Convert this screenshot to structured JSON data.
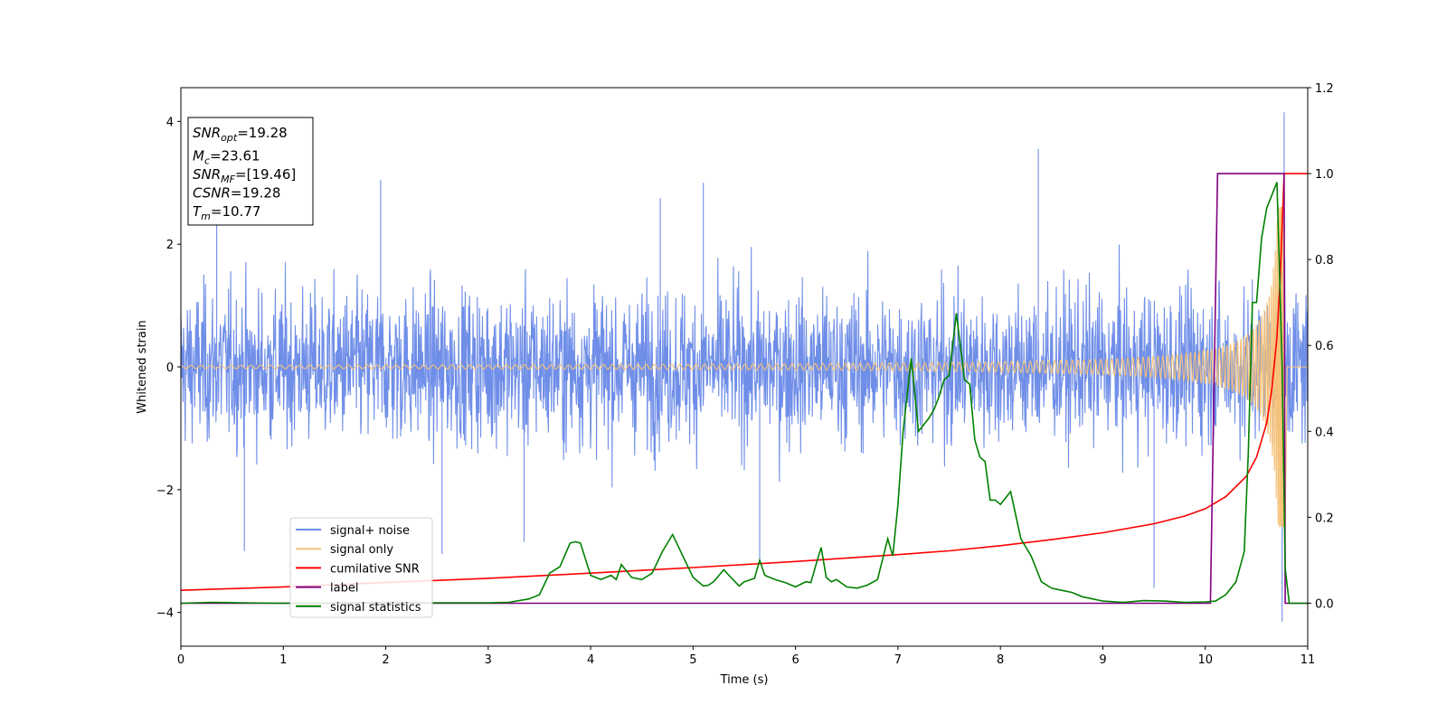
{
  "chart_data": {
    "type": "line",
    "xlabel": "Time (s)",
    "ylabel": "Whitened strain",
    "xlim": [
      0,
      11
    ],
    "ylim_left": [
      -4.55,
      4.55
    ],
    "ylim_right": [
      -0.1,
      1.2
    ],
    "x_ticks": [
      "0",
      "1",
      "2",
      "3",
      "4",
      "5",
      "6",
      "7",
      "8",
      "9",
      "10",
      "11"
    ],
    "y_left_ticks": [
      "−4",
      "−2",
      "0",
      "2",
      "4"
    ],
    "y_right_ticks": [
      "0.0",
      "0.2",
      "0.4",
      "0.6",
      "0.8",
      "1.0",
      "1.2"
    ],
    "grid": false,
    "legend_position": "lower-left",
    "info_box": [
      {
        "base": "SNR",
        "sub": "opt",
        "rest": "=19.28"
      },
      {
        "base": "M",
        "sub": "c",
        "rest": "=23.61"
      },
      {
        "base": "SNR",
        "sub": "MF",
        "rest": "=[19.46]"
      },
      {
        "base": "CSNR",
        "sub": "",
        "rest": "=19.28"
      },
      {
        "base": "T",
        "sub": "m",
        "rest": "=10.77"
      }
    ],
    "series": [
      {
        "name": "signal+ noise",
        "color": "#6f8ee8",
        "axis": "left",
        "style": "noise band, typical amplitude about ±1.5, spikes up to about 4.1"
      },
      {
        "name": "signal only",
        "color": "#f5c27a",
        "axis": "left",
        "style": "chirp, amplitude about 0 growing to about 2.5 near t=10.77"
      },
      {
        "name": "cumilative SNR",
        "color": "#ff0000",
        "axis": "right",
        "x": [
          0,
          1,
          2,
          3,
          4,
          5,
          6,
          7,
          7.5,
          8,
          8.5,
          9,
          9.5,
          9.8,
          10,
          10.2,
          10.4,
          10.5,
          10.6,
          10.65,
          10.7,
          10.73,
          10.77,
          11
        ],
        "y": [
          0.03,
          0.038,
          0.048,
          0.058,
          0.07,
          0.083,
          0.097,
          0.113,
          0.122,
          0.134,
          0.148,
          0.164,
          0.185,
          0.203,
          0.22,
          0.248,
          0.295,
          0.34,
          0.42,
          0.5,
          0.62,
          0.75,
          1.0,
          1.0
        ]
      },
      {
        "name": "label",
        "color": "#800080",
        "axis": "right",
        "x": [
          0,
          10.05,
          10.12,
          10.77,
          10.78,
          11
        ],
        "y": [
          0,
          0,
          1.0,
          1.0,
          0,
          0
        ]
      },
      {
        "name": "signal statistics",
        "color": "#008000",
        "axis": "right",
        "x": [
          0,
          0.3,
          0.6,
          1,
          1.5,
          2,
          2.5,
          3,
          3.2,
          3.4,
          3.5,
          3.6,
          3.7,
          3.8,
          3.85,
          3.9,
          4.0,
          4.1,
          4.2,
          4.25,
          4.3,
          4.4,
          4.5,
          4.6,
          4.7,
          4.8,
          4.9,
          5.0,
          5.1,
          5.15,
          5.2,
          5.3,
          5.35,
          5.45,
          5.5,
          5.6,
          5.65,
          5.7,
          5.8,
          5.9,
          6.0,
          6.1,
          6.15,
          6.2,
          6.25,
          6.3,
          6.35,
          6.4,
          6.5,
          6.6,
          6.7,
          6.8,
          6.9,
          6.95,
          7.0,
          7.05,
          7.13,
          7.2,
          7.3,
          7.35,
          7.4,
          7.45,
          7.5,
          7.57,
          7.65,
          7.7,
          7.75,
          7.8,
          7.85,
          7.9,
          7.95,
          8.0,
          8.1,
          8.2,
          8.3,
          8.4,
          8.5,
          8.6,
          8.7,
          8.8,
          8.9,
          9.0,
          9.2,
          9.4,
          9.6,
          9.8,
          10.0,
          10.1,
          10.2,
          10.3,
          10.38,
          10.42,
          10.46,
          10.5,
          10.55,
          10.6,
          10.65,
          10.7,
          10.75,
          10.78,
          10.82,
          11
        ],
        "y": [
          0,
          0.002,
          0.001,
          0,
          0.001,
          0.002,
          0.001,
          0.001,
          0.002,
          0.01,
          0.02,
          0.07,
          0.085,
          0.14,
          0.143,
          0.14,
          0.065,
          0.055,
          0.065,
          0.055,
          0.09,
          0.06,
          0.055,
          0.07,
          0.12,
          0.16,
          0.11,
          0.06,
          0.04,
          0.042,
          0.05,
          0.078,
          0.065,
          0.04,
          0.05,
          0.058,
          0.1,
          0.065,
          0.055,
          0.048,
          0.038,
          0.05,
          0.048,
          0.09,
          0.13,
          0.06,
          0.05,
          0.055,
          0.038,
          0.035,
          0.042,
          0.055,
          0.15,
          0.11,
          0.23,
          0.4,
          0.57,
          0.4,
          0.43,
          0.45,
          0.48,
          0.52,
          0.53,
          0.675,
          0.52,
          0.51,
          0.38,
          0.34,
          0.33,
          0.24,
          0.24,
          0.23,
          0.26,
          0.15,
          0.11,
          0.05,
          0.035,
          0.03,
          0.025,
          0.015,
          0.01,
          0.005,
          0.002,
          0.006,
          0.005,
          0.002,
          0.003,
          0.005,
          0.02,
          0.05,
          0.12,
          0.35,
          0.7,
          0.7,
          0.85,
          0.92,
          0.95,
          0.98,
          0.55,
          0.08,
          0.0,
          0.0
        ]
      }
    ]
  }
}
